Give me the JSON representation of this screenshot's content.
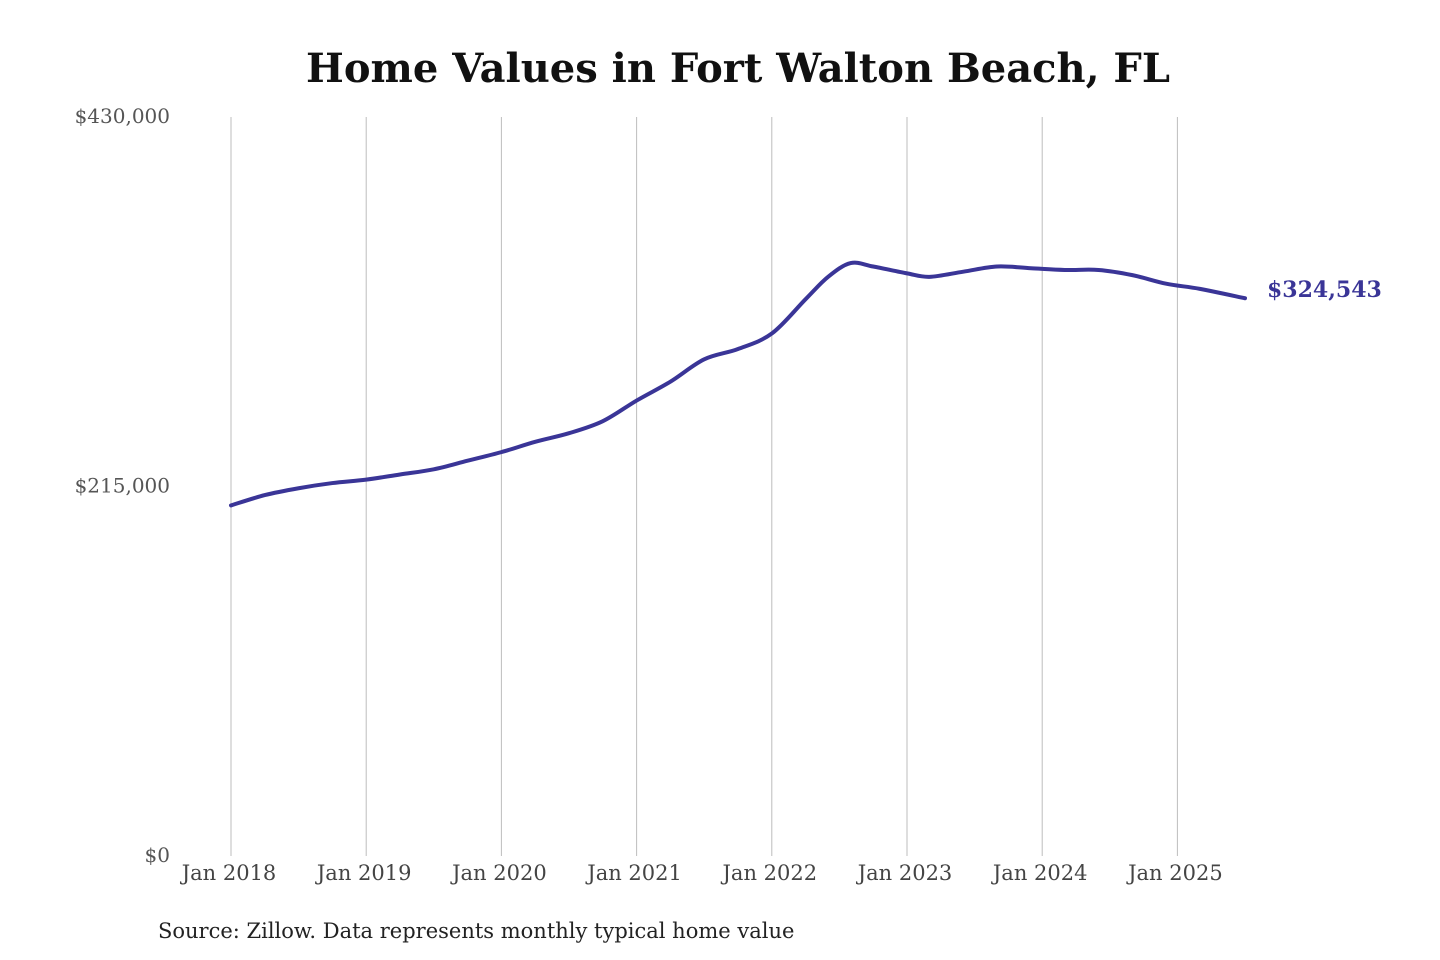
{
  "colors": {
    "series": "#3a3597",
    "grid": "#bdbdbd",
    "background": "#ffffff"
  },
  "chart_data": {
    "type": "line",
    "title": "Home Values in Fort Walton Beach, FL",
    "xlabel": "",
    "ylabel": "",
    "ylim": [
      0,
      430000
    ],
    "xlim": [
      "2018-01",
      "2025-07"
    ],
    "y_ticks": [
      0,
      215000,
      430000
    ],
    "y_tick_labels": [
      "$0",
      "$215,000",
      "$430,000"
    ],
    "x_ticks": [
      "2018-01",
      "2019-01",
      "2020-01",
      "2021-01",
      "2022-01",
      "2023-01",
      "2024-01",
      "2025-01"
    ],
    "x_tick_labels": [
      "Jan 2018",
      "Jan 2019",
      "Jan 2020",
      "Jan 2021",
      "Jan 2022",
      "Jan 2023",
      "Jan 2024",
      "Jan 2025"
    ],
    "grid": "vertical",
    "legend": "none",
    "end_label": "$324,543",
    "source": "Source: Zillow. Data represents monthly typical home value",
    "series": [
      {
        "points": [
          [
            "2018-01",
            204000
          ],
          [
            "2018-04",
            210000
          ],
          [
            "2018-07",
            214000
          ],
          [
            "2018-10",
            217000
          ],
          [
            "2019-01",
            219000
          ],
          [
            "2019-04",
            222000
          ],
          [
            "2019-07",
            225000
          ],
          [
            "2019-10",
            230000
          ],
          [
            "2020-01",
            235000
          ],
          [
            "2020-04",
            241000
          ],
          [
            "2020-07",
            246000
          ],
          [
            "2020-10",
            253000
          ],
          [
            "2021-01",
            265000
          ],
          [
            "2021-04",
            276000
          ],
          [
            "2021-07",
            289000
          ],
          [
            "2021-10",
            295000
          ],
          [
            "2022-01",
            304000
          ],
          [
            "2022-04",
            324000
          ],
          [
            "2022-06",
            337000
          ],
          [
            "2022-08",
            345000
          ],
          [
            "2022-10",
            343000
          ],
          [
            "2023-01",
            339000
          ],
          [
            "2023-03",
            337000
          ],
          [
            "2023-06",
            340000
          ],
          [
            "2023-09",
            343000
          ],
          [
            "2023-12",
            342000
          ],
          [
            "2024-03",
            341000
          ],
          [
            "2024-06",
            341000
          ],
          [
            "2024-09",
            338000
          ],
          [
            "2024-12",
            333000
          ],
          [
            "2025-03",
            330000
          ],
          [
            "2025-07",
            324543
          ]
        ]
      }
    ]
  }
}
